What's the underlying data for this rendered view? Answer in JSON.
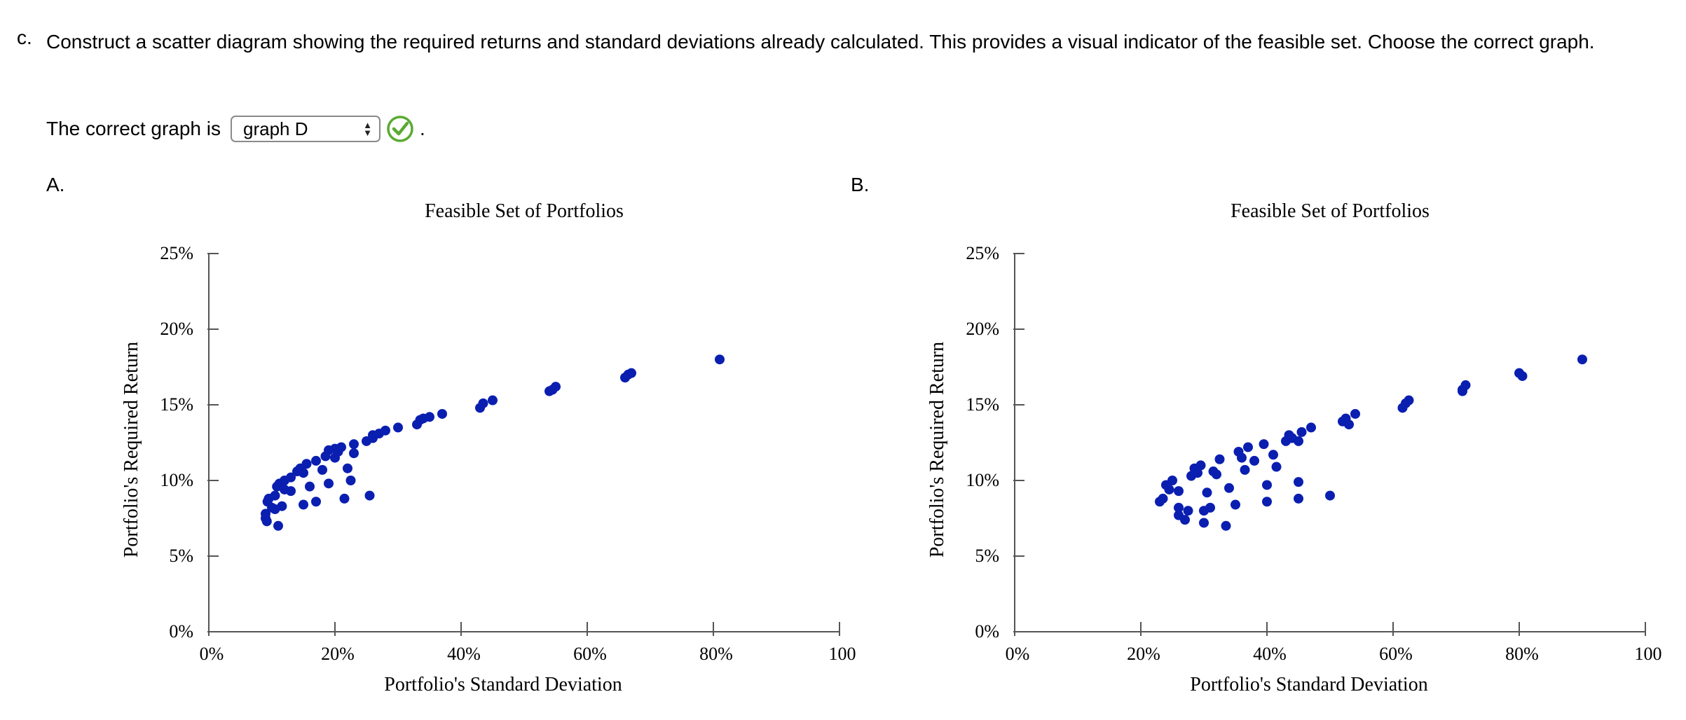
{
  "question": {
    "letter": "c.",
    "text": "Construct a scatter diagram showing the required returns and standard deviations already calculated. This provides a visual indicator of the feasible set. Choose the correct graph."
  },
  "answer": {
    "prompt": "The correct graph is",
    "selected": "graph D",
    "status": "correct",
    "period": "."
  },
  "colors": {
    "dot": "#0a1fb0",
    "check": "#5aaa32",
    "axis": "#555555"
  },
  "chart_data": [
    {
      "panel_label": "A.",
      "type": "scatter",
      "title": "Feasible Set of Portfolios",
      "xlabel": "Portfolio's Standard Deviation",
      "ylabel": "Portfolio's Required Return",
      "xlim": [
        0,
        100
      ],
      "ylim": [
        0,
        25
      ],
      "xticks": [
        "0%",
        "20%",
        "40%",
        "60%",
        "80%",
        "100"
      ],
      "yticks": [
        "0%",
        "5%",
        "10%",
        "15%",
        "20%",
        "25%"
      ],
      "points": [
        [
          9,
          7.5
        ],
        [
          9,
          7.8
        ],
        [
          9.3,
          8.6
        ],
        [
          9.5,
          8.8
        ],
        [
          9.2,
          7.3
        ],
        [
          10,
          8.2
        ],
        [
          10.5,
          8.1
        ],
        [
          11,
          7.0
        ],
        [
          11.6,
          8.3
        ],
        [
          10.5,
          9.0
        ],
        [
          10.8,
          9.6
        ],
        [
          11.2,
          9.8
        ],
        [
          12,
          10.0
        ],
        [
          12,
          9.4
        ],
        [
          13,
          9.3
        ],
        [
          13,
          10.2
        ],
        [
          14,
          10.6
        ],
        [
          14.5,
          10.8
        ],
        [
          15,
          10.5
        ],
        [
          15.5,
          11.1
        ],
        [
          15,
          8.4
        ],
        [
          16,
          9.6
        ],
        [
          17,
          11.3
        ],
        [
          17,
          8.6
        ],
        [
          18,
          10.7
        ],
        [
          18.5,
          11.6
        ],
        [
          19,
          12.0
        ],
        [
          20,
          11.5
        ],
        [
          20,
          12.1
        ],
        [
          20.5,
          11.9
        ],
        [
          21,
          12.2
        ],
        [
          19,
          9.8
        ],
        [
          21.5,
          8.8
        ],
        [
          22,
          10.8
        ],
        [
          22.5,
          10.0
        ],
        [
          23,
          11.8
        ],
        [
          23,
          12.4
        ],
        [
          25,
          12.6
        ],
        [
          26,
          13.0
        ],
        [
          26,
          12.8
        ],
        [
          27,
          13.1
        ],
        [
          28,
          13.3
        ],
        [
          25.5,
          9.0
        ],
        [
          30,
          13.5
        ],
        [
          33,
          13.7
        ],
        [
          33.5,
          14.0
        ],
        [
          34,
          14.1
        ],
        [
          35,
          14.2
        ],
        [
          37,
          14.4
        ],
        [
          43,
          14.8
        ],
        [
          43.5,
          15.1
        ],
        [
          45,
          15.3
        ],
        [
          54,
          15.9
        ],
        [
          54.5,
          16.0
        ],
        [
          55,
          16.2
        ],
        [
          66,
          16.8
        ],
        [
          66.5,
          17.0
        ],
        [
          67,
          17.1
        ],
        [
          81,
          18.0
        ]
      ]
    },
    {
      "panel_label": "B.",
      "type": "scatter",
      "title": "Feasible Set of Portfolios",
      "xlabel": "Portfolio's Standard Deviation",
      "ylabel": "Portfolio's Required Return",
      "xlim": [
        0,
        100
      ],
      "ylim": [
        0,
        25
      ],
      "xticks": [
        "0%",
        "20%",
        "40%",
        "60%",
        "80%",
        "100"
      ],
      "yticks": [
        "0%",
        "5%",
        "10%",
        "15%",
        "20%",
        "25%"
      ],
      "points": [
        [
          23,
          8.6
        ],
        [
          23.5,
          8.8
        ],
        [
          24,
          9.7
        ],
        [
          24.5,
          9.4
        ],
        [
          25,
          10.0
        ],
        [
          26,
          9.3
        ],
        [
          26,
          8.2
        ],
        [
          26,
          7.7
        ],
        [
          27,
          7.4
        ],
        [
          27.5,
          8.0
        ],
        [
          28,
          10.3
        ],
        [
          28.5,
          10.8
        ],
        [
          29,
          10.5
        ],
        [
          29.5,
          11.0
        ],
        [
          30,
          8.0
        ],
        [
          30,
          7.2
        ],
        [
          30.5,
          9.2
        ],
        [
          31,
          8.2
        ],
        [
          31.5,
          10.6
        ],
        [
          32,
          10.4
        ],
        [
          32.5,
          11.4
        ],
        [
          33.5,
          7.0
        ],
        [
          34,
          9.5
        ],
        [
          35,
          8.4
        ],
        [
          35.5,
          11.9
        ],
        [
          36,
          11.5
        ],
        [
          36.5,
          10.7
        ],
        [
          37,
          12.2
        ],
        [
          38,
          11.3
        ],
        [
          39.5,
          12.4
        ],
        [
          40,
          9.7
        ],
        [
          40,
          8.6
        ],
        [
          41,
          11.7
        ],
        [
          41.5,
          10.9
        ],
        [
          43,
          12.6
        ],
        [
          43.5,
          13.0
        ],
        [
          44,
          12.8
        ],
        [
          45,
          9.9
        ],
        [
          45,
          8.8
        ],
        [
          45,
          12.6
        ],
        [
          45.5,
          13.2
        ],
        [
          47,
          13.5
        ],
        [
          50,
          9.0
        ],
        [
          52,
          13.9
        ],
        [
          52.5,
          14.1
        ],
        [
          53,
          13.7
        ],
        [
          54,
          14.4
        ],
        [
          61.5,
          14.8
        ],
        [
          62,
          15.1
        ],
        [
          62.5,
          15.3
        ],
        [
          71,
          16.0
        ],
        [
          71,
          15.9
        ],
        [
          71.5,
          16.3
        ],
        [
          80,
          17.1
        ],
        [
          80.5,
          16.9
        ],
        [
          90,
          18.0
        ]
      ]
    }
  ]
}
